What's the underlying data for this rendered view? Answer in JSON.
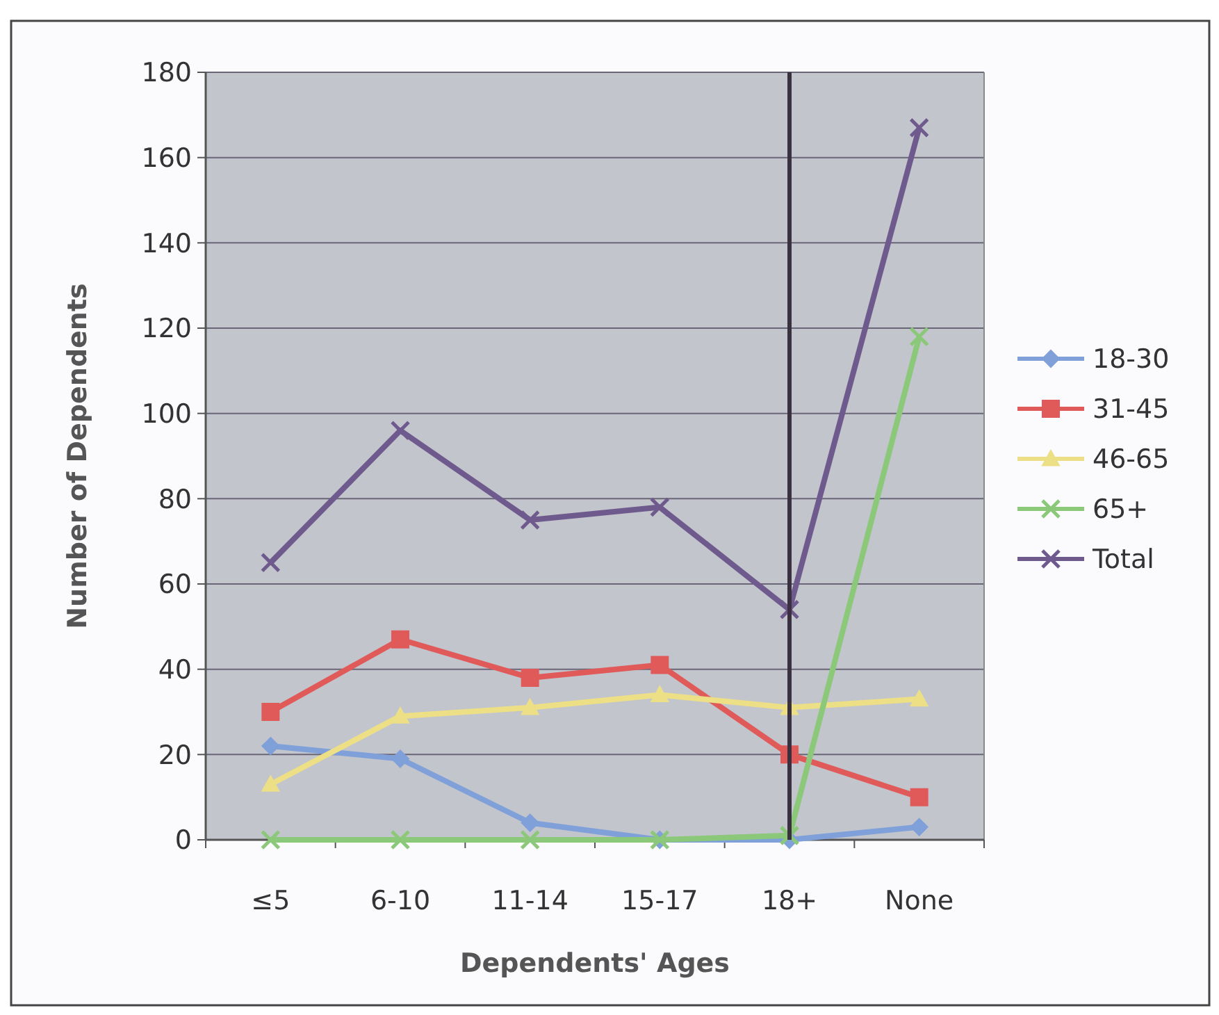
{
  "chart_data": {
    "type": "line",
    "xlabel": "Dependents' Ages",
    "ylabel": "Number of Dependents",
    "categories": [
      "≤5",
      "6-10",
      "11-14",
      "15-17",
      "18+",
      "None"
    ],
    "series": [
      {
        "name": "18-30",
        "color": "#7fa0d8",
        "marker": "diamond",
        "values": [
          22,
          19,
          4,
          0,
          0,
          3
        ]
      },
      {
        "name": "31-45",
        "color": "#e05a5a",
        "marker": "square",
        "values": [
          30,
          47,
          38,
          41,
          20,
          10
        ]
      },
      {
        "name": "46-65",
        "color": "#ecdf86",
        "marker": "triangle",
        "values": [
          13,
          29,
          31,
          34,
          31,
          33
        ]
      },
      {
        "name": "65+",
        "color": "#8cc87a",
        "marker": "cross",
        "values": [
          0,
          0,
          0,
          0,
          1,
          118
        ]
      },
      {
        "name": "Total",
        "color": "#6f5a8e",
        "marker": "cross",
        "values": [
          65,
          96,
          75,
          78,
          54,
          167
        ]
      }
    ],
    "ylim": [
      0,
      180
    ],
    "yticks": [
      0,
      20,
      40,
      60,
      80,
      100,
      120,
      140,
      160,
      180
    ],
    "grid": "y",
    "legend": "right",
    "ref_lines": [
      {
        "axis": "x",
        "value": "18+",
        "color": "#3a3040"
      }
    ]
  }
}
